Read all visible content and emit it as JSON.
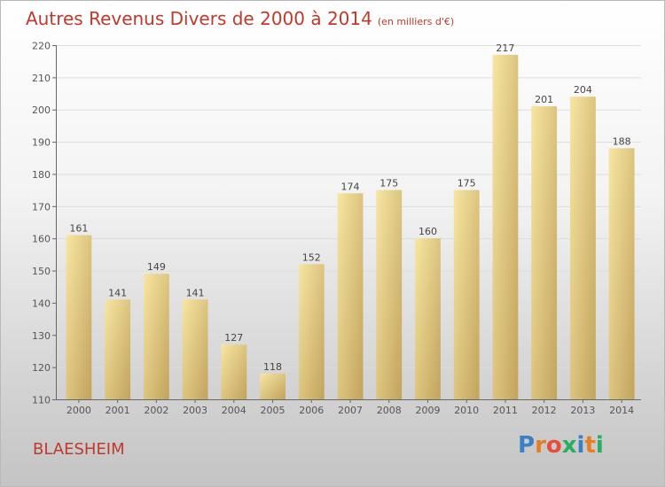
{
  "title": "Autres Revenus Divers de 2000 à 2014",
  "unit": "(en milliers d'€)",
  "city": "BLAESHEIM",
  "logo": {
    "text": "Proxiti",
    "letters": [
      "P",
      "r",
      "o",
      "x",
      "i",
      "t",
      "i"
    ],
    "colors": [
      "#3b7fc4",
      "#e67e22",
      "#e74c3c",
      "#27ae60",
      "#3b7fc4",
      "#e67e22",
      "#27ae60"
    ]
  },
  "colors": {
    "title": "#c0392b",
    "bar_light": "#f6e39c",
    "bar_dark": "#c4a55e"
  },
  "chart_data": {
    "type": "bar",
    "title": "Autres Revenus Divers de 2000 à 2014",
    "xlabel": "",
    "ylabel": "(en milliers d'€)",
    "ylim": [
      110,
      220
    ],
    "yticks": [
      110,
      120,
      130,
      140,
      150,
      160,
      170,
      180,
      190,
      200,
      210,
      220
    ],
    "grid": true,
    "categories": [
      "2000",
      "2001",
      "2002",
      "2003",
      "2004",
      "2005",
      "2006",
      "2007",
      "2008",
      "2009",
      "2010",
      "2011",
      "2012",
      "2013",
      "2014"
    ],
    "values": [
      161,
      141,
      149,
      141,
      127,
      118,
      152,
      174,
      175,
      160,
      175,
      217,
      201,
      204,
      188
    ]
  }
}
